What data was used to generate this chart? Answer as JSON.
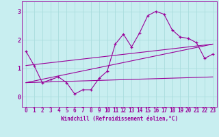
{
  "bg_color": "#c8eef0",
  "line_color": "#990099",
  "grid_color": "#aadddd",
  "xlabel": "Windchill (Refroidissement éolien,°C)",
  "xlim": [
    -0.5,
    23.5
  ],
  "ylim": [
    -0.35,
    3.35
  ],
  "yticks": [
    0,
    1,
    2,
    3
  ],
  "xticks": [
    0,
    1,
    2,
    3,
    4,
    5,
    6,
    7,
    8,
    9,
    10,
    11,
    12,
    13,
    14,
    15,
    16,
    17,
    18,
    19,
    20,
    21,
    22,
    23
  ],
  "main_line_x": [
    0,
    1,
    2,
    3,
    4,
    5,
    6,
    7,
    8,
    9,
    10,
    11,
    12,
    13,
    14,
    15,
    16,
    17,
    18,
    19,
    20,
    21,
    22,
    23
  ],
  "main_line_y": [
    1.6,
    1.1,
    0.5,
    0.6,
    0.7,
    0.5,
    0.1,
    0.25,
    0.25,
    0.65,
    0.9,
    1.85,
    2.2,
    1.75,
    2.25,
    2.85,
    3.0,
    2.9,
    2.35,
    2.1,
    2.05,
    1.9,
    1.35,
    1.5
  ],
  "trend1_x": [
    0,
    23
  ],
  "trend1_y": [
    1.1,
    1.85
  ],
  "trend2_x": [
    0,
    23
  ],
  "trend2_y": [
    0.5,
    1.85
  ],
  "trend3_x": [
    0,
    23
  ],
  "trend3_y": [
    0.5,
    0.7
  ],
  "xlabel_fontsize": 5.5,
  "tick_fontsize": 5.5,
  "lw": 0.8
}
